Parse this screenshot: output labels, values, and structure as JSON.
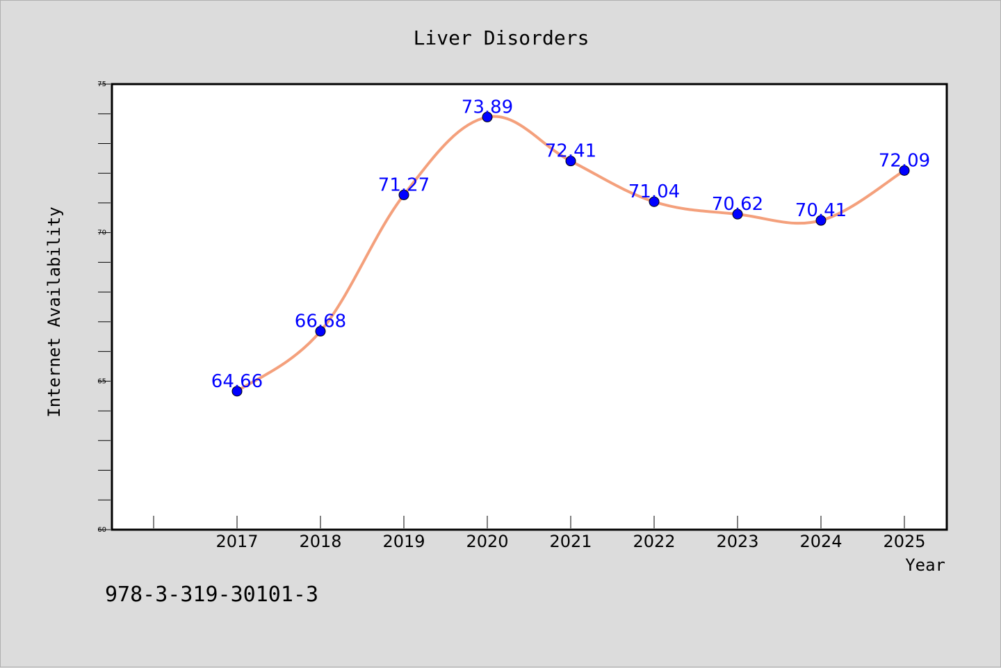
{
  "chart_data": {
    "type": "line",
    "title": "Liver Disorders",
    "xlabel": "Year",
    "ylabel": "Internet Availability",
    "categories": [
      "2017",
      "2018",
      "2019",
      "2020",
      "2021",
      "2022",
      "2023",
      "2024",
      "2025"
    ],
    "values": [
      64.66,
      66.68,
      71.27,
      73.89,
      72.41,
      71.04,
      70.62,
      70.41,
      72.09
    ],
    "data_labels": [
      "64.66",
      "66.68",
      "71.27",
      "73.89",
      "72.41",
      "71.04",
      "70.62",
      "70.41",
      "72.09"
    ],
    "ylim": [
      60,
      75
    ],
    "yticks": [
      "60",
      "65",
      "70",
      "75"
    ],
    "grid": false,
    "legend": false,
    "line_color": "#f4a07c",
    "marker_color": "#0000ff",
    "label_color": "#0000ff"
  },
  "footer": {
    "text": "978-3-319-30101-3"
  },
  "colors": {
    "background": "#dcdcdc",
    "plot_background": "#ffffff"
  }
}
